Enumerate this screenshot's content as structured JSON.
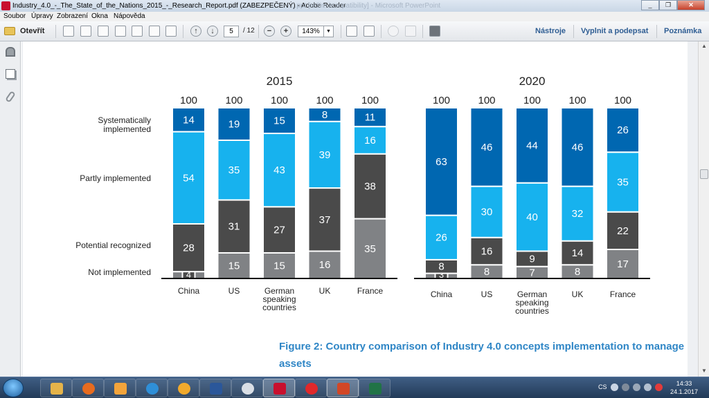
{
  "window": {
    "title": "Industry_4.0_-_The_State_of_the_Nations_2015_-_Research_Report.pdf (ZABEZPEČENÝ) - Adobe Reader",
    "background_title": "...ppt [režim kompatibility] - Microsoft PowerPoint",
    "buttons": {
      "minimize": "_",
      "restore": "❐",
      "close": "✕"
    }
  },
  "menu": [
    "Soubor",
    "Úpravy",
    "Zobrazení",
    "Okna",
    "Nápověda"
  ],
  "toolbar": {
    "open_label": "Otevřít",
    "page_current": "5",
    "page_total": "/ 12",
    "zoom": "143%",
    "tools_label": "Nástroje",
    "fill_sign_label": "Vyplnit a podepsat",
    "comment_label": "Poznámka",
    "icons": [
      "create-pdf-icon",
      "convert-icon",
      "edit-icon",
      "upload-icon",
      "save-icon",
      "print-icon",
      "email-icon",
      "prev-page-icon",
      "next-page-icon",
      "zoom-out-icon",
      "zoom-in-icon",
      "fit-page-icon",
      "fit-width-icon",
      "comment-icon",
      "sign-icon",
      "fullscreen-icon"
    ]
  },
  "leftnav": {
    "icons": [
      "lock-icon",
      "pages-icon",
      "attachment-icon"
    ]
  },
  "chart_data": {
    "type": "bar",
    "stacked": true,
    "row_labels": [
      "Systematically implemented",
      "Partly implemented",
      "Potential recognized",
      "Not implemented"
    ],
    "series_colors": {
      "Not implemented": "#808285",
      "Potential recognized": "#4a4a4a",
      "Partly implemented": "#17b2ee",
      "Systematically implemented": "#0067b1"
    },
    "panels": [
      {
        "title": "2015",
        "categories": [
          "China",
          "US",
          "German speaking countries",
          "UK",
          "France"
        ],
        "totals": [
          "100",
          "100",
          "100",
          "100",
          "100"
        ],
        "series": [
          {
            "name": "Not implemented",
            "values": [
              4,
              15,
              15,
              16,
              35
            ]
          },
          {
            "name": "Potential recognized",
            "values": [
              28,
              31,
              27,
              37,
              38
            ]
          },
          {
            "name": "Partly implemented",
            "values": [
              54,
              35,
              43,
              39,
              16
            ]
          },
          {
            "name": "Systematically implemented",
            "values": [
              14,
              19,
              15,
              8,
              11
            ]
          }
        ]
      },
      {
        "title": "2020",
        "categories": [
          "China",
          "US",
          "German speaking countries",
          "UK",
          "France"
        ],
        "totals": [
          "100",
          "100",
          "100",
          "100",
          "100"
        ],
        "series": [
          {
            "name": "Not implemented",
            "values": [
              3,
              8,
              7,
              8,
              17
            ]
          },
          {
            "name": "Potential recognized",
            "values": [
              8,
              16,
              9,
              14,
              22
            ]
          },
          {
            "name": "Partly implemented",
            "values": [
              26,
              30,
              40,
              32,
              35
            ]
          },
          {
            "name": "Systematically implemented",
            "values": [
              63,
              46,
              44,
              46,
              26
            ]
          }
        ]
      }
    ]
  },
  "caption": "Figure 2: Country comparison of Industry 4.0 concepts implementation to manage assets",
  "taskbar": {
    "apps": [
      "explorer",
      "firefox",
      "media-player",
      "internet-explorer",
      "app-orange",
      "word",
      "mail",
      "adobe-reader",
      "app-red",
      "powerpoint",
      "excel"
    ],
    "language": "CS",
    "time": "14:33",
    "date": "24.1.2017"
  }
}
